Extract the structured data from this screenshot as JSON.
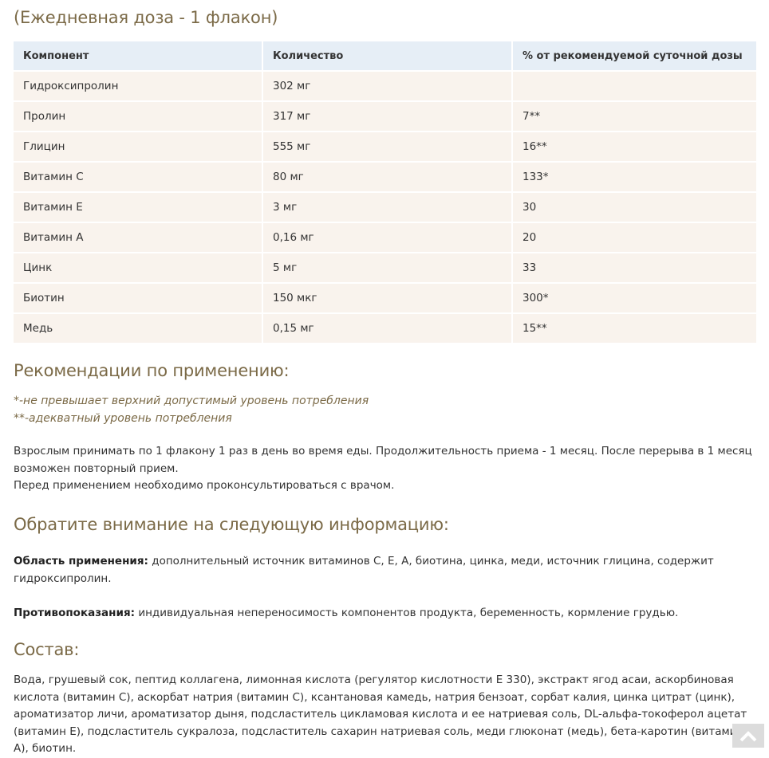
{
  "dose_title": "(Ежедневная доза - 1 флакон)",
  "table": {
    "headers": [
      "Компонент",
      "Количество",
      "% от рекомендуемой суточной дозы"
    ],
    "rows": [
      [
        "Гидроксипролин",
        "302 мг",
        ""
      ],
      [
        "Пролин",
        "317 мг",
        "7**"
      ],
      [
        "Глицин",
        "555 мг",
        "16**"
      ],
      [
        "Витамин С",
        "80 мг",
        "133*"
      ],
      [
        "Витамин Е",
        "3 мг",
        "30"
      ],
      [
        "Витамин А",
        "0,16 мг",
        "20"
      ],
      [
        "Цинк",
        "5 мг",
        "33"
      ],
      [
        "Биотин",
        "150 мкг",
        "300*"
      ],
      [
        "Медь",
        "0,15 мг",
        "15**"
      ]
    ]
  },
  "recommendations": {
    "title": "Рекомендации по применению:",
    "note1": "*-не превышает верхний допустимый уровень потребления",
    "note2": "**-адекватный уровень потребления",
    "text1": "Взрослым принимать по 1 флакону 1 раз в день во время еды. Продолжительность приема - 1 месяц. После перерыва в 1 месяц возможен повторный прием.",
    "text2": "Перед применением необходимо проконсультироваться с врачом."
  },
  "attention": {
    "title": "Обратите внимание на следующую информацию:",
    "scope_label": "Область применения:",
    "scope_text": " дополнительный источник витаминов С, Е, А, биотина, цинка, меди, источник глицина, содержит гидроксипролин.",
    "contra_label": "Противопоказания:",
    "contra_text": " индивидуальная непереносимость компонентов продукта, беременность, кормление грудью."
  },
  "composition": {
    "title": "Состав:",
    "text": "Вода, грушевый сок, пептид коллагена, лимонная кислота (регулятор кислотности Е 330), экстракт ягод асаи, аскорбиновая кислота (витамин С), аскорбат натрия (витамин С), ксантановая камедь, натрия бензоат, сорбат калия, цинка цитрат (цинк), ароматизатор личи, ароматизатор дыня, подсластитель цикламовая кислота и ее натриевая соль,  DL-альфа-токоферол ацетат (витамин Е), подсластитель сукралоза, подсластитель сахарин натриевая соль, меди глюконат (медь), бета-каротин (витамин А),  биотин."
  },
  "scroll_top_icon": "chevron-up-icon"
}
